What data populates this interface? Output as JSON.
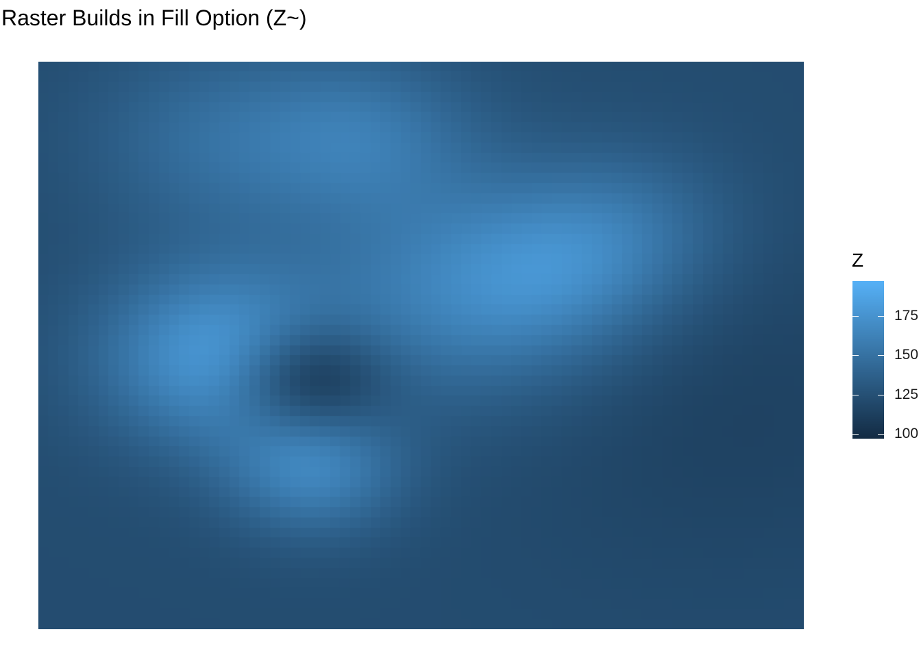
{
  "chart_data": {
    "type": "heatmap",
    "title": "Raster Builds in Fill Option (Z~)",
    "xlabel": "",
    "ylabel": "",
    "fill_variable": "Z",
    "grid": false,
    "axes": false,
    "legend": {
      "title": "Z",
      "position": "right",
      "type": "colorbar",
      "ticks": [
        100,
        125,
        150,
        175
      ],
      "range": [
        97,
        197
      ],
      "low_color": "#132b43",
      "high_color": "#56b1f7"
    },
    "x_range": [
      0,
      1
    ],
    "y_range": [
      0,
      1
    ],
    "components": [
      {
        "x": 0.5,
        "y": 0.5,
        "weight": 25,
        "spread": 10
      },
      {
        "x": 0.24,
        "y": 0.52,
        "weight": 58,
        "spread": 0.11
      },
      {
        "x": 0.36,
        "y": 0.72,
        "weight": 40,
        "spread": 0.08
      },
      {
        "x": 0.35,
        "y": 0.56,
        "weight": -48,
        "spread": 0.07
      },
      {
        "x": 0.56,
        "y": 0.4,
        "weight": 38,
        "spread": 0.14
      },
      {
        "x": 0.68,
        "y": 0.38,
        "weight": 20,
        "spread": 0.1
      },
      {
        "x": 0.24,
        "y": 0.14,
        "weight": 25,
        "spread": 0.12
      },
      {
        "x": 0.43,
        "y": 0.13,
        "weight": 28,
        "spread": 0.1
      },
      {
        "x": 0.77,
        "y": 0.29,
        "weight": 22,
        "spread": 0.1
      },
      {
        "x": 0.9,
        "y": 0.62,
        "weight": -8,
        "spread": 0.2
      }
    ]
  }
}
